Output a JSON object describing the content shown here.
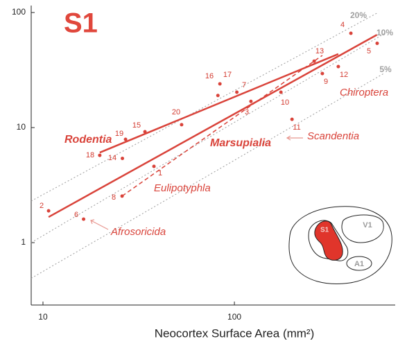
{
  "chart_data": {
    "type": "scatter",
    "title": "S1",
    "x_label": "Neocortex Surface Area (mm²)",
    "log_x": true,
    "log_y": true,
    "color": "#d9433a",
    "xlim": [
      8.68,
      692
    ],
    "ylim": [
      0.287,
      115
    ],
    "xticks": [
      10,
      100
    ],
    "yticks": [
      1,
      10,
      100
    ],
    "points": {
      "labels": [
        "1",
        "2",
        "3",
        "4",
        "5",
        "6",
        "7",
        "8",
        "9",
        "10",
        "11",
        "12",
        "13",
        "14",
        "15",
        "16",
        "17",
        "18",
        "19",
        "20"
      ],
      "x": [
        38,
        10.7,
        122,
        406,
        557,
        16.3,
        103,
        25.9,
        288,
        175,
        200,
        349,
        261,
        26,
        34.1,
        82,
        84,
        19.8,
        27,
        53
      ],
      "y": [
        4.6,
        1.89,
        16.9,
        66,
        54,
        1.6,
        20.3,
        2.54,
        29.5,
        20.3,
        11.8,
        33.9,
        37.8,
        5.4,
        9.2,
        19,
        24,
        5.74,
        7.9,
        10.6
      ]
    },
    "fits": [
      {
        "style": "solid",
        "x": [
          19.8,
          349
        ],
        "y": [
          6.07,
          43.6
        ]
      },
      {
        "style": "solid",
        "x": [
          10.7,
          555
        ],
        "y": [
          1.67,
          64
        ]
      },
      {
        "style": "dashed",
        "x": [
          25.9,
          288
        ],
        "y": [
          2.54,
          42.4
        ]
      }
    ],
    "isolines": [
      {
        "label": "20%",
        "x": [
          8.68,
          563
        ],
        "y": [
          2.3,
          100
        ]
      },
      {
        "label": "10%",
        "x": [
          8.68,
          611
        ],
        "y": [
          1,
          66
        ]
      },
      {
        "label": "5%",
        "x": [
          8.68,
          611
        ],
        "y": [
          0.49,
          29.9
        ]
      }
    ],
    "groups": [
      "Rodentia",
      "Marsupialia",
      "Eulipotyphla",
      "Chiroptera",
      "Scandentia",
      "Afrosoricida"
    ]
  },
  "inset": {
    "s1": "S1",
    "v1": "V1",
    "a1": "A1"
  }
}
